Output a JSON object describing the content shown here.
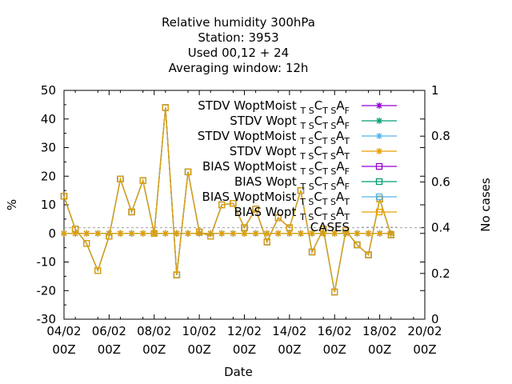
{
  "chart_data": {
    "type": "line",
    "title_lines": [
      "Relative humidity 300hPa",
      "Station:      3953",
      "Used  00,12  + 24",
      "Averaging window: 12h"
    ],
    "xlabel": "Date",
    "ylabel": "%",
    "y2label": "No cases",
    "ylim": [
      -30,
      50
    ],
    "y2lim": [
      0,
      1
    ],
    "xlim": [
      "2008-02-04T00:00",
      "2008-02-20T00:00"
    ],
    "x_ticks": [
      {
        "date": "04/02",
        "hour": "00Z"
      },
      {
        "date": "06/02",
        "hour": "00Z"
      },
      {
        "date": "08/02",
        "hour": "00Z"
      },
      {
        "date": "10/02",
        "hour": "00Z"
      },
      {
        "date": "12/02",
        "hour": "00Z"
      },
      {
        "date": "14/02",
        "hour": "00Z"
      },
      {
        "date": "16/02",
        "hour": "00Z"
      },
      {
        "date": "18/02",
        "hour": "00Z"
      },
      {
        "date": "20/02",
        "hour": "00Z"
      }
    ],
    "y_ticks": [
      -30,
      -20,
      -10,
      0,
      10,
      20,
      30,
      40,
      50
    ],
    "y2_ticks": [
      0,
      0.2,
      0.4,
      0.6,
      0.8,
      1
    ],
    "x": [
      "2008-02-04T00:00",
      "2008-02-04T12:00",
      "2008-02-05T00:00",
      "2008-02-05T12:00",
      "2008-02-06T00:00",
      "2008-02-06T12:00",
      "2008-02-07T00:00",
      "2008-02-07T12:00",
      "2008-02-08T00:00",
      "2008-02-08T12:00",
      "2008-02-09T00:00",
      "2008-02-09T12:00",
      "2008-02-10T00:00",
      "2008-02-10T12:00",
      "2008-02-11T00:00",
      "2008-02-11T12:00",
      "2008-02-12T00:00",
      "2008-02-12T12:00",
      "2008-02-13T00:00",
      "2008-02-13T12:00",
      "2008-02-14T00:00",
      "2008-02-14T12:00",
      "2008-02-15T00:00",
      "2008-02-15T12:00",
      "2008-02-16T00:00",
      "2008-02-16T12:00",
      "2008-02-17T00:00",
      "2008-02-17T12:00",
      "2008-02-18T00:00",
      "2008-02-18T12:00"
    ],
    "bias_values": [
      13,
      1.5,
      -3.5,
      -13,
      -1,
      19,
      7.5,
      18.5,
      0,
      44,
      -14.5,
      21.5,
      0.5,
      -1,
      10,
      10.5,
      2,
      8.5,
      -3,
      5.5,
      2,
      15,
      -6.5,
      1.5,
      -20.5,
      1,
      -4,
      -7.5,
      12,
      -0.5
    ],
    "stdv_values": [
      0,
      0,
      0,
      0,
      0,
      0,
      0,
      0,
      0,
      0,
      0,
      0,
      0,
      0,
      0,
      0,
      0,
      0,
      0,
      0,
      0,
      0,
      0,
      0,
      0,
      0,
      0,
      0,
      0,
      0
    ],
    "series": [
      {
        "name_main": "STDV WoptMoist",
        "sub1": "T S",
        "mid": "C",
        "sub2": "T S",
        "end": "A",
        "sub3": "F",
        "color": "#9400d3",
        "marker": "star",
        "kind": "stdv"
      },
      {
        "name_main": "STDV Wopt",
        "sub1": "T S",
        "mid": "C",
        "sub2": "T S",
        "end": "A",
        "sub3": "F",
        "color": "#009e73",
        "marker": "star",
        "kind": "stdv"
      },
      {
        "name_main": "STDV WoptMoist",
        "sub1": "T S",
        "mid": "C",
        "sub2": "T S",
        "end": "A",
        "sub3": "T",
        "color": "#56b4e9",
        "marker": "star",
        "kind": "stdv"
      },
      {
        "name_main": "STDV Wopt",
        "sub1": "T S",
        "mid": "C",
        "sub2": "T S",
        "end": "A",
        "sub3": "T",
        "color": "#e69f00",
        "marker": "star",
        "kind": "stdv"
      },
      {
        "name_main": "BIAS WoptMoist",
        "sub1": "T S",
        "mid": "C",
        "sub2": "T S",
        "end": "A",
        "sub3": "F",
        "color": "#9400d3",
        "marker": "square",
        "kind": "bias"
      },
      {
        "name_main": "BIAS Wopt",
        "sub1": "T S",
        "mid": "C",
        "sub2": "T S",
        "end": "A",
        "sub3": "F",
        "color": "#009e73",
        "marker": "square",
        "kind": "bias"
      },
      {
        "name_main": "BIAS WoptMoist",
        "sub1": "T S",
        "mid": "C",
        "sub2": "T S",
        "end": "A",
        "sub3": "T",
        "color": "#56b4e9",
        "marker": "square",
        "kind": "bias"
      },
      {
        "name_main": "BIAS Wopt",
        "sub1": "T S",
        "mid": "C",
        "sub2": "T S",
        "end": "A",
        "sub3": "T",
        "color": "#e69f00",
        "marker": "square",
        "kind": "bias"
      },
      {
        "name_main": "CASES",
        "color": "#a0a0a0",
        "kind": "cases",
        "values_y2": [
          0.4
        ]
      }
    ],
    "grid": false,
    "legend_position": "top-right"
  }
}
